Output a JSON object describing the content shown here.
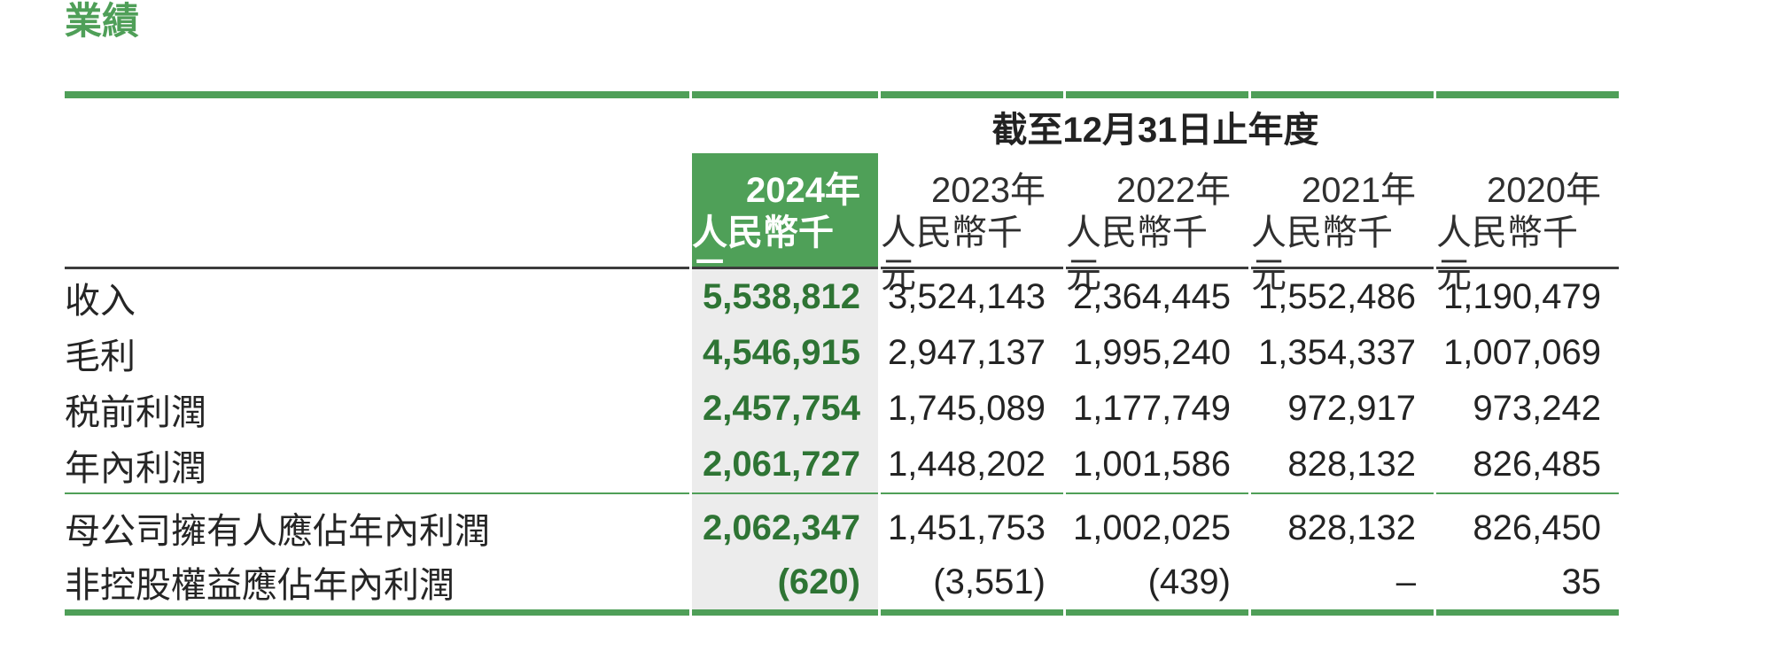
{
  "page": {
    "title": "業績"
  },
  "colors": {
    "accent_green": "#4f9f58",
    "highlight_header_bg": "#4fa058",
    "highlight_column_bg": "#ececec",
    "highlight_value_text": "#2e7434",
    "dark_rule": "#3c3c3c",
    "body_text": "#252525"
  },
  "table": {
    "period_header": "截至12月31日止年度",
    "columns": [
      {
        "year": "2024年",
        "unit": "人民幣千元",
        "highlighted": true
      },
      {
        "year": "2023年",
        "unit": "人民幣千元",
        "highlighted": false
      },
      {
        "year": "2022年",
        "unit": "人民幣千元",
        "highlighted": false
      },
      {
        "year": "2021年",
        "unit": "人民幣千元",
        "highlighted": false
      },
      {
        "year": "2020年",
        "unit": "人民幣千元",
        "highlighted": false
      }
    ],
    "rows": [
      {
        "label": "收入",
        "values": [
          "5,538,812",
          "3,524,143",
          "2,364,445",
          "1,552,486",
          "1,190,479"
        ]
      },
      {
        "label": "毛利",
        "values": [
          "4,546,915",
          "2,947,137",
          "1,995,240",
          "1,354,337",
          "1,007,069"
        ]
      },
      {
        "label": "税前利潤",
        "values": [
          "2,457,754",
          "1,745,089",
          "1,177,749",
          "972,917",
          "973,242"
        ]
      },
      {
        "label": "年內利潤",
        "values": [
          "2,061,727",
          "1,448,202",
          "1,001,586",
          "828,132",
          "826,485"
        ]
      },
      {
        "label": "母公司擁有人應佔年內利潤",
        "values": [
          "2,062,347",
          "1,451,753",
          "1,002,025",
          "828,132",
          "826,450"
        ]
      },
      {
        "label": "非控股權益應佔年內利潤",
        "values": [
          "(620)",
          "(3,551)",
          "(439)",
          "–",
          "35"
        ]
      }
    ]
  }
}
